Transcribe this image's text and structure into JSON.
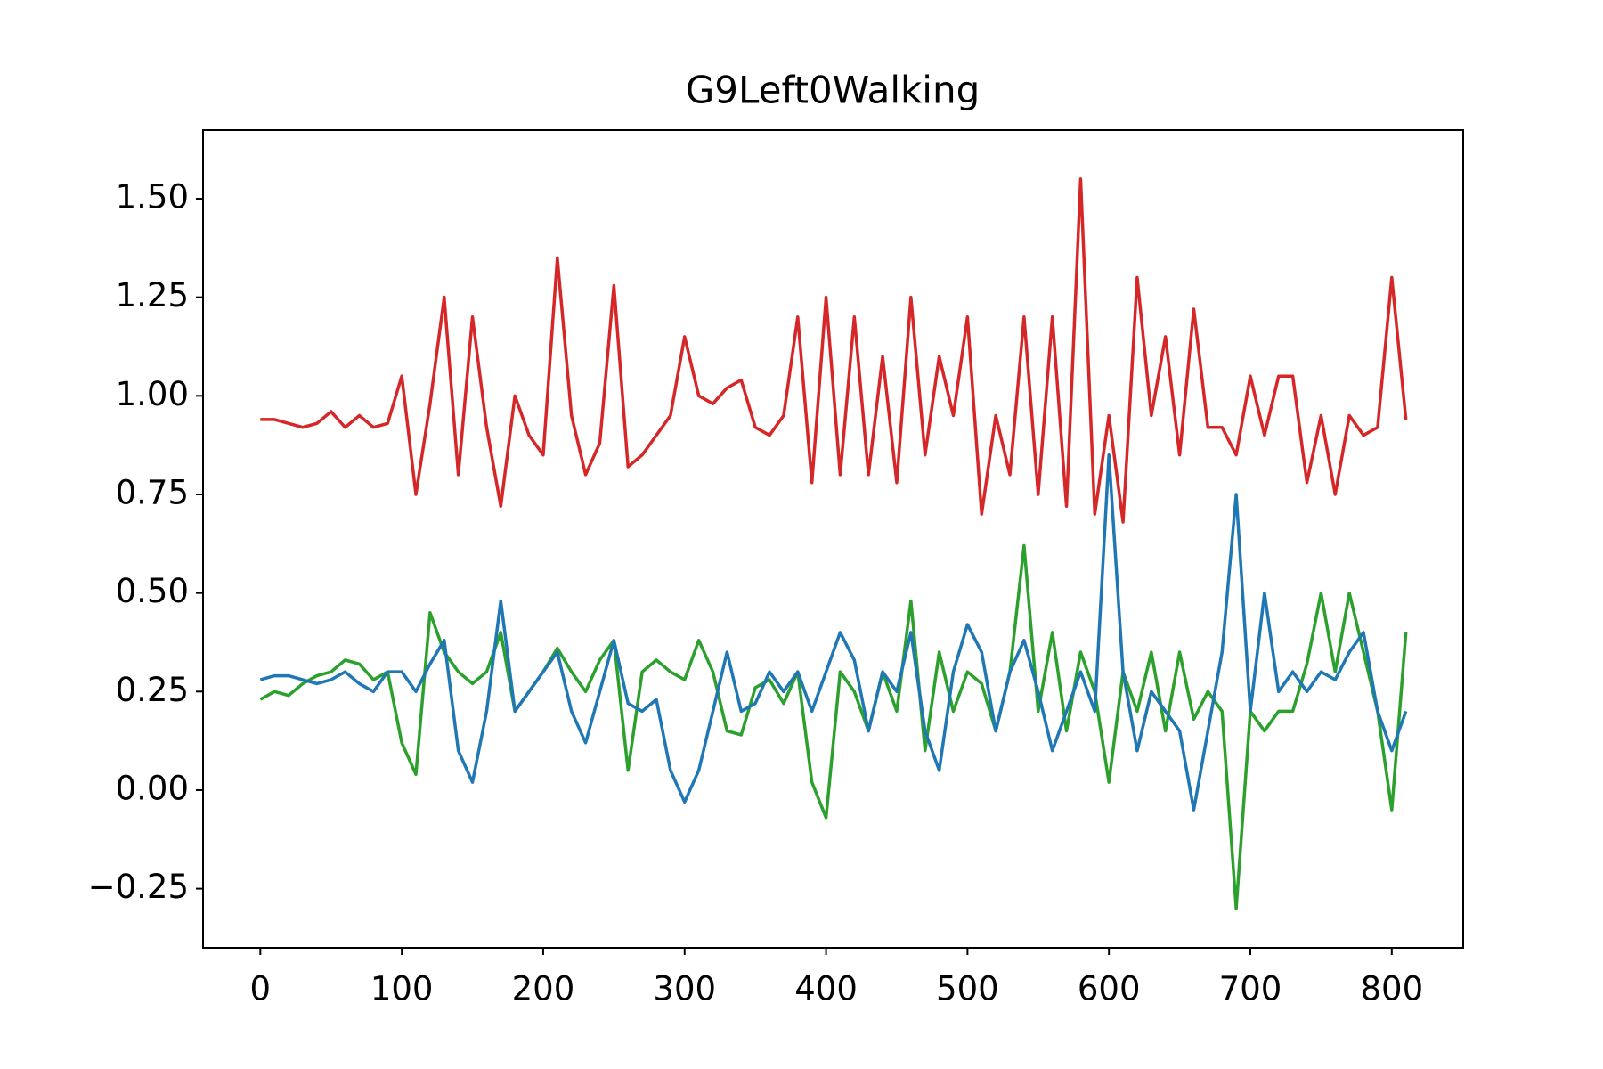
{
  "chart_data": {
    "type": "line",
    "title": "G9Left0Walking",
    "x": [
      0,
      10,
      20,
      30,
      40,
      50,
      60,
      70,
      80,
      90,
      100,
      110,
      120,
      130,
      140,
      150,
      160,
      170,
      180,
      190,
      200,
      210,
      220,
      230,
      240,
      250,
      260,
      270,
      280,
      290,
      300,
      310,
      320,
      330,
      340,
      350,
      360,
      370,
      380,
      390,
      400,
      410,
      420,
      430,
      440,
      450,
      460,
      470,
      480,
      490,
      500,
      510,
      520,
      530,
      540,
      550,
      560,
      570,
      580,
      590,
      600,
      610,
      620,
      630,
      640,
      650,
      660,
      670,
      680,
      690,
      700,
      710,
      720,
      730,
      740,
      750,
      760,
      770,
      780,
      790,
      800,
      810
    ],
    "series": [
      {
        "color": "#d62728",
        "values": [
          0.94,
          0.94,
          0.93,
          0.92,
          0.93,
          0.96,
          0.92,
          0.95,
          0.92,
          0.93,
          1.05,
          0.75,
          0.98,
          1.25,
          0.8,
          1.2,
          0.92,
          0.72,
          1.0,
          0.9,
          0.85,
          1.35,
          0.95,
          0.8,
          0.88,
          1.28,
          0.82,
          0.85,
          0.9,
          0.95,
          1.15,
          1.0,
          0.98,
          1.02,
          1.04,
          0.92,
          0.9,
          0.95,
          1.2,
          0.78,
          1.25,
          0.8,
          1.2,
          0.8,
          1.1,
          0.78,
          1.25,
          0.85,
          1.1,
          0.95,
          1.2,
          0.7,
          0.95,
          0.8,
          1.2,
          0.75,
          1.2,
          0.72,
          1.55,
          0.7,
          0.95,
          0.68,
          1.3,
          0.95,
          1.15,
          0.85,
          1.22,
          0.92,
          0.92,
          0.85,
          1.05,
          0.9,
          1.05,
          1.05,
          0.78,
          0.95,
          0.75,
          0.95,
          0.9,
          0.92,
          1.3,
          0.94
        ]
      },
      {
        "color": "#2ca02c",
        "values": [
          0.23,
          0.25,
          0.24,
          0.27,
          0.29,
          0.3,
          0.33,
          0.32,
          0.28,
          0.3,
          0.12,
          0.04,
          0.45,
          0.35,
          0.3,
          0.27,
          0.3,
          0.4,
          0.2,
          0.25,
          0.3,
          0.36,
          0.3,
          0.25,
          0.33,
          0.38,
          0.05,
          0.3,
          0.33,
          0.3,
          0.28,
          0.38,
          0.3,
          0.15,
          0.14,
          0.26,
          0.28,
          0.22,
          0.3,
          0.02,
          -0.07,
          0.3,
          0.25,
          0.15,
          0.3,
          0.2,
          0.48,
          0.1,
          0.35,
          0.2,
          0.3,
          0.27,
          0.15,
          0.3,
          0.62,
          0.2,
          0.4,
          0.15,
          0.35,
          0.25,
          0.02,
          0.3,
          0.2,
          0.35,
          0.15,
          0.35,
          0.18,
          0.25,
          0.2,
          -0.3,
          0.2,
          0.15,
          0.2,
          0.2,
          0.32,
          0.5,
          0.3,
          0.5,
          0.35,
          0.2,
          -0.05,
          0.4
        ]
      },
      {
        "color": "#1f77b4",
        "values": [
          0.28,
          0.29,
          0.29,
          0.28,
          0.27,
          0.28,
          0.3,
          0.27,
          0.25,
          0.3,
          0.3,
          0.25,
          0.32,
          0.38,
          0.1,
          0.02,
          0.2,
          0.48,
          0.2,
          0.25,
          0.3,
          0.35,
          0.2,
          0.12,
          0.25,
          0.38,
          0.22,
          0.2,
          0.23,
          0.05,
          -0.03,
          0.05,
          0.2,
          0.35,
          0.2,
          0.22,
          0.3,
          0.25,
          0.3,
          0.2,
          0.3,
          0.4,
          0.33,
          0.15,
          0.3,
          0.25,
          0.4,
          0.15,
          0.05,
          0.3,
          0.42,
          0.35,
          0.15,
          0.3,
          0.38,
          0.25,
          0.1,
          0.2,
          0.3,
          0.2,
          0.85,
          0.3,
          0.1,
          0.25,
          0.2,
          0.15,
          -0.05,
          0.15,
          0.35,
          0.75,
          0.2,
          0.5,
          0.25,
          0.3,
          0.25,
          0.3,
          0.28,
          0.35,
          0.4,
          0.2,
          0.1,
          0.2
        ]
      }
    ],
    "xlim": [
      -40.5,
      850.5
    ],
    "ylim": [
      -0.4,
      1.674
    ],
    "xticks": [
      0,
      100,
      200,
      300,
      400,
      500,
      600,
      700,
      800
    ],
    "yticks": [
      {
        "value": -0.25,
        "label": "−0.25"
      },
      {
        "value": 0,
        "label": "0.00"
      },
      0.25,
      {
        "value": 0.5,
        "label": "0.50"
      },
      0.75,
      {
        "value": 1,
        "label": "1.00"
      },
      1.25,
      {
        "value": 1.5,
        "label": "1.50"
      }
    ]
  }
}
